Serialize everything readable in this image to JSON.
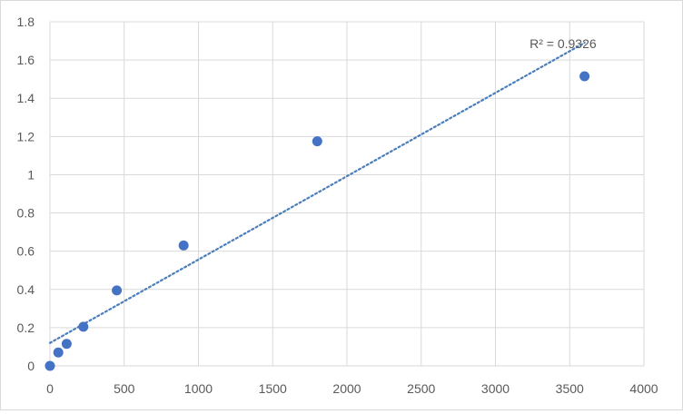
{
  "chart_data": {
    "type": "scatter",
    "title": "",
    "xlabel": "",
    "ylabel": "",
    "xlim": [
      0,
      4000
    ],
    "ylim": [
      0,
      1.8
    ],
    "x_ticks": [
      0,
      500,
      1000,
      1500,
      2000,
      2500,
      3000,
      3500,
      4000
    ],
    "x_tick_labels": [
      "0",
      "500",
      "1000",
      "1500",
      "2000",
      "2500",
      "3000",
      "3500",
      "4000"
    ],
    "y_ticks": [
      0,
      0.2,
      0.4,
      0.6,
      0.8,
      1.0,
      1.2,
      1.4,
      1.6,
      1.8
    ],
    "y_tick_labels": [
      "0",
      "0.2",
      "0.4",
      "0.6",
      "0.8",
      "1",
      "1.2",
      "1.4",
      "1.6",
      "1.8"
    ],
    "grid": true,
    "legend": "none",
    "series": [
      {
        "x": [
          0,
          56.25,
          112.5,
          225,
          450,
          900,
          1800,
          3600
        ],
        "y": [
          0.0,
          0.07,
          0.115,
          0.205,
          0.395,
          0.63,
          1.175,
          1.515
        ]
      }
    ],
    "trendline": {
      "type": "linear",
      "style": "dotted",
      "x_range": [
        0,
        3600
      ],
      "y_start": 0.12,
      "y_end": 1.69
    },
    "annotations": [
      {
        "text": "R² = 0.9326",
        "x": 3230,
        "y": 1.69
      }
    ],
    "colors": {
      "marker": "#4472c4",
      "trendline": "#4a7ebb",
      "grid": "#d9d9d9",
      "text": "#595959"
    }
  }
}
